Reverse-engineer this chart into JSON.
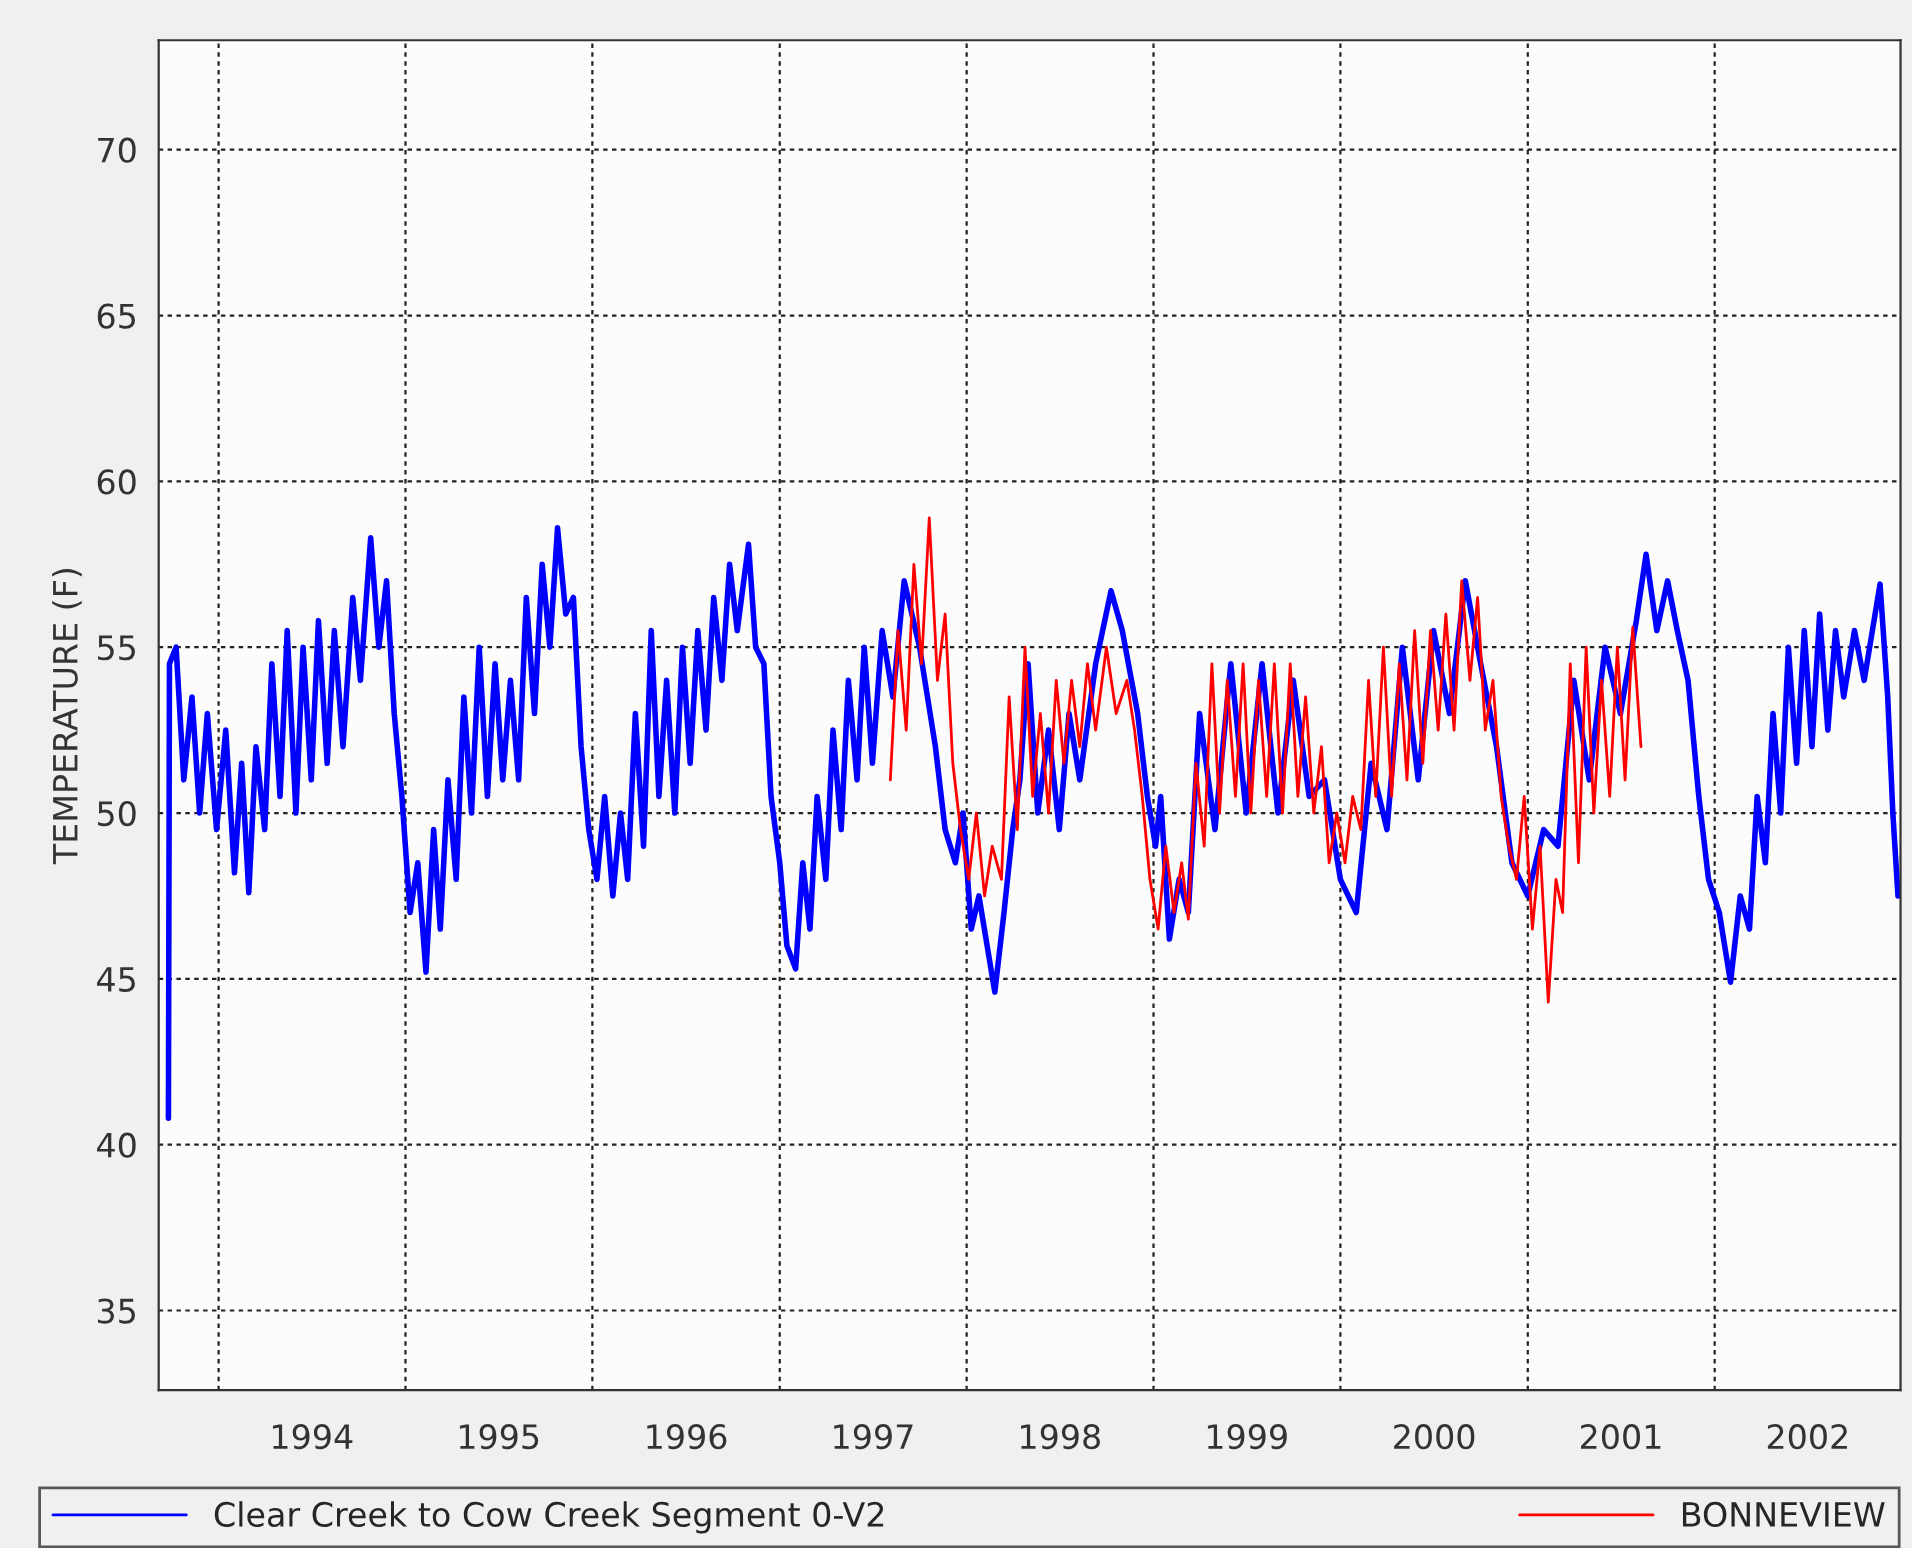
{
  "chart_data": {
    "type": "line",
    "ylabel": "TEMPERATURE (F)",
    "xlim": [
      "1993-09-06",
      "2002-12-30"
    ],
    "ylim": [
      32.6,
      73.3
    ],
    "yticks": [
      35,
      40,
      45,
      50,
      55,
      60,
      65,
      70
    ],
    "xticks": [
      {
        "value": "1994-01-01",
        "label": null
      },
      {
        "value": "1994-07-02",
        "label": "1994"
      },
      {
        "value": "1995-01-01",
        "label": null
      },
      {
        "value": "1995-07-02",
        "label": "1995"
      },
      {
        "value": "1996-01-01",
        "label": null
      },
      {
        "value": "1996-07-02",
        "label": "1996"
      },
      {
        "value": "1997-01-01",
        "label": null
      },
      {
        "value": "1997-07-02",
        "label": "1997"
      },
      {
        "value": "1998-01-01",
        "label": null
      },
      {
        "value": "1998-07-02",
        "label": "1998"
      },
      {
        "value": "1999-01-01",
        "label": null
      },
      {
        "value": "1999-07-02",
        "label": "1999"
      },
      {
        "value": "2000-01-01",
        "label": null
      },
      {
        "value": "2000-07-02",
        "label": "2000"
      },
      {
        "value": "2001-01-01",
        "label": null
      },
      {
        "value": "2001-07-02",
        "label": "2001"
      },
      {
        "value": "2002-01-01",
        "label": null
      },
      {
        "value": "2002-07-02",
        "label": "2002"
      }
    ],
    "grid": true,
    "legend": "bottom",
    "line_style": "solid",
    "marker": "none",
    "series": [
      {
        "name": "Clear Creek to Cow Creek Segment 0-V2",
        "color": "#0000ff",
        "x": [
          "1993-09-25",
          "1993-09-27",
          "1993-10-10",
          "1993-10-25",
          "1993-11-10",
          "1993-11-25",
          "1993-12-10",
          "1993-12-28",
          "1994-01-15",
          "1994-02-01",
          "1994-02-15",
          "1994-03-01",
          "1994-03-15",
          "1994-04-01",
          "1994-04-15",
          "1994-05-01",
          "1994-05-15",
          "1994-06-01",
          "1994-06-15",
          "1994-07-01",
          "1994-07-15",
          "1994-08-01",
          "1994-08-15",
          "1994-09-01",
          "1994-09-20",
          "1994-10-05",
          "1994-10-25",
          "1994-11-10",
          "1994-11-25",
          "1994-12-10",
          "1994-12-25",
          "1995-01-10",
          "1995-01-25",
          "1995-02-10",
          "1995-02-25",
          "1995-03-10",
          "1995-03-25",
          "1995-04-10",
          "1995-04-25",
          "1995-05-10",
          "1995-05-25",
          "1995-06-10",
          "1995-06-25",
          "1995-07-10",
          "1995-07-25",
          "1995-08-10",
          "1995-08-25",
          "1995-09-10",
          "1995-09-25",
          "1995-10-10",
          "1995-10-25",
          "1995-11-10",
          "1995-11-25",
          "1995-12-10",
          "1995-12-25",
          "1996-01-10",
          "1996-01-25",
          "1996-02-10",
          "1996-02-25",
          "1996-03-10",
          "1996-03-25",
          "1996-04-10",
          "1996-04-25",
          "1996-05-10",
          "1996-05-25",
          "1996-06-10",
          "1996-06-25",
          "1996-07-10",
          "1996-07-25",
          "1996-08-10",
          "1996-08-25",
          "1996-09-10",
          "1996-09-25",
          "1996-10-10",
          "1996-11-01",
          "1996-11-15",
          "1996-12-01",
          "1996-12-15",
          "1997-01-01",
          "1997-01-15",
          "1997-02-01",
          "1997-02-15",
          "1997-03-01",
          "1997-03-15",
          "1997-04-01",
          "1997-04-15",
          "1997-05-01",
          "1997-05-15",
          "1997-06-01",
          "1997-06-15",
          "1997-07-01",
          "1997-07-20",
          "1997-08-10",
          "1997-09-01",
          "1997-10-01",
          "1997-11-01",
          "1997-11-20",
          "1997-12-10",
          "1997-12-25",
          "1998-01-10",
          "1998-01-25",
          "1998-02-25",
          "1998-03-15",
          "1998-04-01",
          "1998-04-15",
          "1998-05-01",
          "1998-05-20",
          "1998-06-10",
          "1998-07-01",
          "1998-07-20",
          "1998-08-10",
          "1998-09-10",
          "1998-10-10",
          "1998-11-01",
          "1998-12-01",
          "1998-12-20",
          "1999-01-05",
          "1999-01-15",
          "1999-02-01",
          "1999-02-20",
          "1999-03-10",
          "1999-04-01",
          "1999-05-01",
          "1999-06-01",
          "1999-07-01",
          "1999-08-01",
          "1999-09-01",
          "1999-10-01",
          "1999-11-01",
          "1999-12-01",
          "2000-01-01",
          "2000-02-01",
          "2000-03-01",
          "2000-04-01",
          "2000-05-01",
          "2000-06-01",
          "2000-07-01",
          "2000-08-01",
          "2000-09-01",
          "2000-10-01",
          "2000-11-01",
          "2000-12-01",
          "2001-01-01",
          "2001-02-01",
          "2001-03-01",
          "2001-04-01",
          "2001-05-01",
          "2001-06-01",
          "2001-07-01",
          "2001-08-01",
          "2001-08-20",
          "2001-09-10",
          "2001-10-01",
          "2001-10-20",
          "2001-11-10",
          "2001-12-01",
          "2001-12-20",
          "2002-01-10",
          "2002-02-01",
          "2002-02-20",
          "2002-03-10",
          "2002-03-25",
          "2002-04-10",
          "2002-04-25",
          "2002-05-10",
          "2002-05-25",
          "2002-06-10",
          "2002-06-25",
          "2002-07-10",
          "2002-07-25",
          "2002-08-10",
          "2002-08-25",
          "2002-09-10",
          "2002-10-01",
          "2002-10-20",
          "2002-11-20",
          "2002-12-05",
          "2002-12-15",
          "2002-12-25"
        ],
        "values": [
          40.8,
          54.5,
          55.0,
          51.0,
          53.5,
          50.0,
          53.0,
          49.5,
          52.5,
          48.2,
          51.5,
          47.6,
          52.0,
          49.5,
          54.5,
          50.5,
          55.5,
          50.0,
          55.0,
          51.0,
          55.8,
          51.5,
          55.5,
          52.0,
          56.5,
          54.0,
          58.3,
          55.0,
          57.0,
          53.0,
          50.5,
          47.0,
          48.5,
          45.2,
          49.5,
          46.5,
          51.0,
          48.0,
          53.5,
          50.0,
          55.0,
          50.5,
          54.5,
          51.0,
          54.0,
          51.0,
          56.5,
          53.0,
          57.5,
          55.0,
          58.6,
          56.0,
          56.5,
          52.0,
          49.5,
          48.0,
          50.5,
          47.5,
          50.0,
          48.0,
          53.0,
          49.0,
          55.5,
          50.5,
          54.0,
          50.0,
          55.0,
          51.5,
          55.5,
          52.5,
          56.5,
          54.0,
          57.5,
          55.5,
          58.1,
          55.0,
          54.5,
          50.5,
          48.5,
          46.0,
          45.3,
          48.5,
          46.5,
          50.5,
          48.0,
          52.5,
          49.5,
          54.0,
          51.0,
          55.0,
          51.5,
          55.5,
          53.5,
          57.0,
          55.0,
          52.0,
          49.5,
          48.5,
          50.0,
          46.5,
          47.5,
          44.6,
          47.0,
          49.5,
          51.0,
          54.5,
          50.0,
          52.5,
          49.5,
          53.0,
          51.0,
          54.5,
          56.7,
          55.5,
          53.0,
          50.5,
          49.0,
          50.5,
          46.2,
          48.0,
          47.0,
          53.0,
          49.5,
          54.5,
          50.0,
          54.5,
          50.0,
          54.0,
          50.5,
          51.0,
          48.0,
          47.0,
          51.5,
          49.5,
          55.0,
          51.0,
          55.5,
          53.0,
          57.0,
          54.5,
          52.0,
          48.5,
          47.5,
          49.5,
          49.0,
          54.0,
          51.0,
          55.0,
          53.0,
          55.8,
          57.8,
          55.5,
          57.0,
          55.5,
          54.0,
          50.5,
          48.0,
          47.0,
          44.9,
          47.5,
          46.5,
          50.5,
          48.5,
          53.0,
          50.0,
          55.0,
          51.5,
          55.5,
          52.0,
          56.0,
          52.5,
          55.5,
          53.5,
          55.5,
          54.0,
          56.9,
          53.5,
          50.0,
          47.5
        ]
      },
      {
        "name": "BONNEVIEW",
        "color": "#ff0000",
        "x": [
          "1997-08-05",
          "1997-08-20",
          "1997-09-05",
          "1997-09-20",
          "1997-10-05",
          "1997-10-20",
          "1997-11-05",
          "1997-11-20",
          "1997-12-05",
          "1997-12-20",
          "1998-01-05",
          "1998-01-20",
          "1998-02-05",
          "1998-02-20",
          "1998-03-10",
          "1998-03-25",
          "1998-04-10",
          "1998-04-25",
          "1998-05-10",
          "1998-05-25",
          "1998-06-10",
          "1998-06-25",
          "1998-07-10",
          "1998-07-25",
          "1998-08-10",
          "1998-08-25",
          "1998-09-10",
          "1998-10-01",
          "1998-10-20",
          "1998-11-10",
          "1998-11-25",
          "1998-12-10",
          "1998-12-25",
          "1999-01-10",
          "1999-01-25",
          "1999-02-10",
          "1999-02-25",
          "1999-03-10",
          "1999-03-25",
          "1999-04-10",
          "1999-04-25",
          "1999-05-10",
          "1999-05-25",
          "1999-06-10",
          "1999-06-25",
          "1999-07-10",
          "1999-07-25",
          "1999-08-10",
          "1999-08-25",
          "1999-09-10",
          "1999-09-25",
          "1999-10-10",
          "1999-10-25",
          "1999-11-10",
          "1999-11-25",
          "1999-12-10",
          "1999-12-25",
          "2000-01-10",
          "2000-01-25",
          "2000-02-10",
          "2000-02-25",
          "2000-03-10",
          "2000-03-25",
          "2000-04-10",
          "2000-04-25",
          "2000-05-10",
          "2000-05-25",
          "2000-06-10",
          "2000-06-25",
          "2000-07-10",
          "2000-07-25",
          "2000-08-10",
          "2000-08-25",
          "2000-09-10",
          "2000-09-25",
          "2000-10-10",
          "2000-10-25",
          "2000-11-10",
          "2000-11-25",
          "2000-12-10",
          "2000-12-25",
          "2001-01-10",
          "2001-01-25",
          "2001-02-10",
          "2001-02-25",
          "2001-03-10",
          "2001-03-25",
          "2001-04-10",
          "2001-04-25",
          "2001-05-10",
          "2001-05-25",
          "2001-06-10",
          "2001-06-25",
          "2001-07-10",
          "2001-07-25",
          "2001-08-10"
        ],
        "values": [
          51.0,
          55.5,
          52.5,
          57.5,
          54.5,
          58.9,
          54.0,
          56.0,
          51.5,
          49.5,
          48.0,
          50.0,
          47.5,
          49.0,
          48.0,
          53.5,
          49.5,
          55.0,
          50.5,
          53.0,
          50.0,
          54.0,
          51.5,
          54.0,
          52.0,
          54.5,
          52.5,
          55.0,
          53.0,
          54.0,
          52.5,
          50.5,
          48.0,
          46.5,
          49.0,
          47.0,
          48.5,
          46.8,
          51.5,
          49.0,
          54.5,
          50.0,
          54.0,
          50.5,
          54.5,
          50.0,
          54.0,
          50.5,
          54.5,
          50.0,
          54.5,
          50.5,
          53.5,
          50.0,
          52.0,
          48.5,
          50.0,
          48.5,
          50.5,
          49.5,
          54.0,
          50.5,
          55.0,
          50.5,
          54.5,
          51.0,
          55.5,
          51.5,
          55.5,
          52.5,
          56.0,
          52.5,
          57.0,
          54.0,
          56.5,
          52.5,
          54.0,
          50.5,
          49.0,
          48.0,
          50.5,
          46.5,
          49.0,
          44.3,
          48.0,
          47.0,
          54.5,
          48.5,
          55.0,
          50.0,
          54.0,
          50.5,
          55.0,
          51.0,
          55.6,
          52.0
        ]
      }
    ]
  }
}
